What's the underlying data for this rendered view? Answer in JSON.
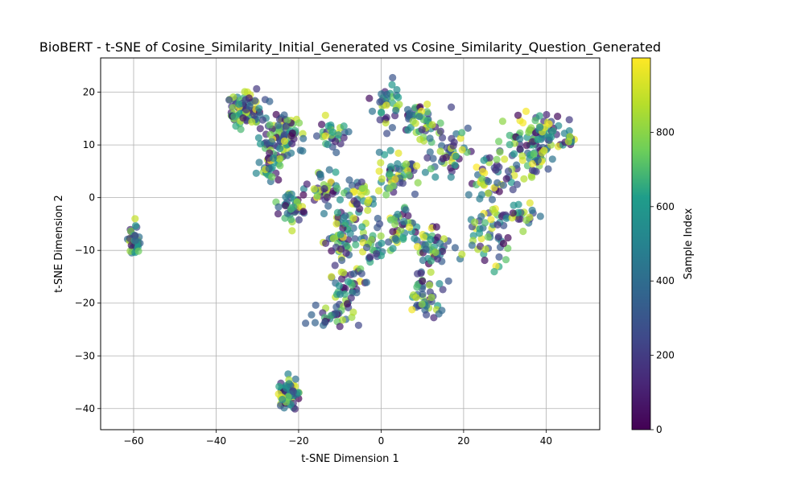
{
  "chart_data": {
    "type": "scatter",
    "title": "BioBERT - t-SNE of Cosine_Similarity_Initial_Generated vs Cosine_Similarity_Question_Generated",
    "xlabel": "t-SNE Dimension 1",
    "ylabel": "t-SNE Dimension 2",
    "xlim": [
      -68,
      53
    ],
    "ylim": [
      -44,
      26.5
    ],
    "xticks": [
      -60,
      -40,
      -20,
      0,
      20,
      40
    ],
    "yticks": [
      -40,
      -30,
      -20,
      -10,
      0,
      10,
      20
    ],
    "grid": true,
    "colormap": "viridis",
    "point_alpha": 0.7,
    "colorbar": {
      "label": "Sample Index",
      "range": [
        0,
        1000
      ],
      "ticks": [
        0,
        200,
        400,
        600,
        800
      ]
    },
    "clusters": [
      {
        "center": [
          -60,
          -8.5
        ],
        "spread": [
          1.2,
          1.8
        ],
        "count": 40
      },
      {
        "center": [
          -22.5,
          -37.2
        ],
        "spread": [
          1.3,
          1.8
        ],
        "count": 70
      },
      {
        "center": [
          -33,
          16.5
        ],
        "spread": [
          3.0,
          2.2
        ],
        "count": 90
      },
      {
        "center": [
          -25,
          11
        ],
        "spread": [
          2.5,
          3.5
        ],
        "count": 70
      },
      {
        "center": [
          -22,
          13
        ],
        "spread": [
          1.5,
          2.0
        ],
        "count": 20
      },
      {
        "center": [
          -27,
          6
        ],
        "spread": [
          2.0,
          1.5
        ],
        "count": 25
      },
      {
        "center": [
          -22,
          -2
        ],
        "spread": [
          2.5,
          2.0
        ],
        "count": 40
      },
      {
        "center": [
          -12,
          12
        ],
        "spread": [
          2.0,
          2.0
        ],
        "count": 30
      },
      {
        "center": [
          -13,
          2
        ],
        "spread": [
          3.0,
          2.0
        ],
        "count": 40
      },
      {
        "center": [
          -5,
          0
        ],
        "spread": [
          3.0,
          2.0
        ],
        "count": 30
      },
      {
        "center": [
          -10,
          -8
        ],
        "spread": [
          2.5,
          3.5
        ],
        "count": 50
      },
      {
        "center": [
          -4,
          -9
        ],
        "spread": [
          3.0,
          3.0
        ],
        "count": 40
      },
      {
        "center": [
          -8,
          -18
        ],
        "spread": [
          3.0,
          3.0
        ],
        "count": 45
      },
      {
        "center": [
          -13,
          -22
        ],
        "spread": [
          2.0,
          1.5
        ],
        "count": 20
      },
      {
        "center": [
          1,
          17
        ],
        "spread": [
          2.0,
          3.0
        ],
        "count": 30
      },
      {
        "center": [
          9,
          15
        ],
        "spread": [
          4.0,
          2.0
        ],
        "count": 50
      },
      {
        "center": [
          16,
          9
        ],
        "spread": [
          4.0,
          2.5
        ],
        "count": 50
      },
      {
        "center": [
          5,
          5
        ],
        "spread": [
          4.0,
          3.0
        ],
        "count": 60
      },
      {
        "center": [
          4,
          -5
        ],
        "spread": [
          3.5,
          2.5
        ],
        "count": 40
      },
      {
        "center": [
          12,
          -10
        ],
        "spread": [
          3.0,
          3.0
        ],
        "count": 50
      },
      {
        "center": [
          11,
          -19
        ],
        "spread": [
          3.0,
          2.5
        ],
        "count": 40
      },
      {
        "center": [
          26,
          3
        ],
        "spread": [
          3.0,
          3.0
        ],
        "count": 40
      },
      {
        "center": [
          26,
          -8
        ],
        "spread": [
          3.0,
          3.0
        ],
        "count": 45
      },
      {
        "center": [
          34,
          -3
        ],
        "spread": [
          4.0,
          1.5
        ],
        "count": 30
      },
      {
        "center": [
          35,
          9
        ],
        "spread": [
          4.0,
          4.5
        ],
        "count": 80
      },
      {
        "center": [
          41,
          12
        ],
        "spread": [
          3.0,
          2.5
        ],
        "count": 40
      },
      {
        "center": [
          46,
          11
        ],
        "spread": [
          1.0,
          1.0
        ],
        "count": 10
      }
    ]
  }
}
